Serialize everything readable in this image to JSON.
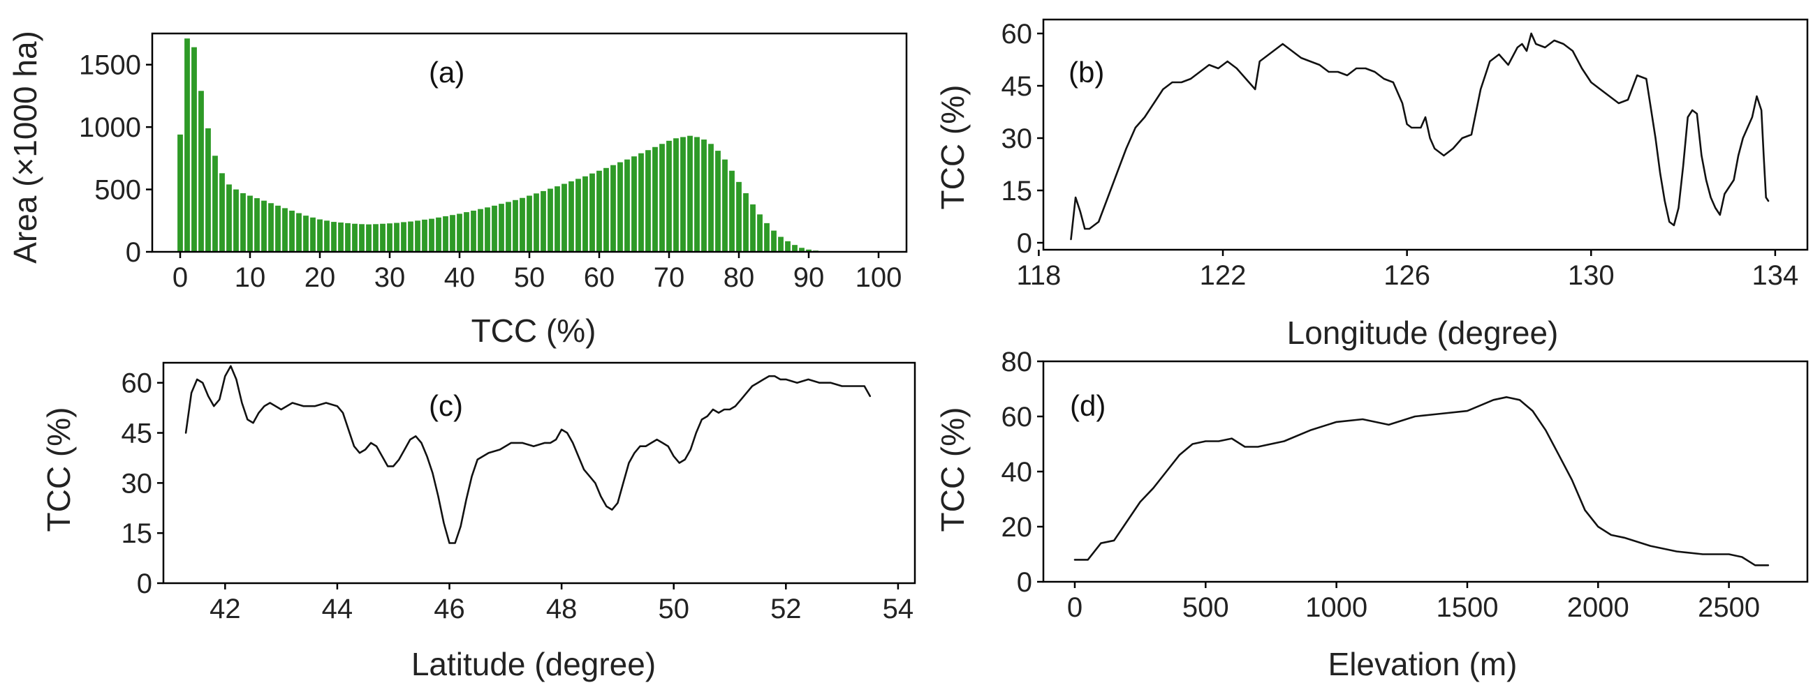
{
  "chart_data": [
    {
      "panel": "(a)",
      "type": "bar",
      "xlabel": "TCC (%)",
      "ylabel": "Area (×1000 ha)",
      "xlim": [
        -4,
        104
      ],
      "ylim": [
        0,
        1750
      ],
      "xticks": [
        0,
        10,
        20,
        30,
        40,
        50,
        60,
        70,
        80,
        90,
        100
      ],
      "yticks": [
        0,
        500,
        1000,
        1500
      ],
      "bar_color": "#2e9a27",
      "x": [
        0,
        1,
        2,
        3,
        4,
        5,
        6,
        7,
        8,
        9,
        10,
        11,
        12,
        13,
        14,
        15,
        16,
        17,
        18,
        19,
        20,
        21,
        22,
        23,
        24,
        25,
        26,
        27,
        28,
        29,
        30,
        31,
        32,
        33,
        34,
        35,
        36,
        37,
        38,
        39,
        40,
        41,
        42,
        43,
        44,
        45,
        46,
        47,
        48,
        49,
        50,
        51,
        52,
        53,
        54,
        55,
        56,
        57,
        58,
        59,
        60,
        61,
        62,
        63,
        64,
        65,
        66,
        67,
        68,
        69,
        70,
        71,
        72,
        73,
        74,
        75,
        76,
        77,
        78,
        79,
        80,
        81,
        82,
        83,
        84,
        85,
        86,
        87,
        88,
        89,
        90,
        91,
        92,
        93,
        94,
        95,
        96,
        97,
        98,
        99,
        100
      ],
      "values": [
        940,
        1710,
        1640,
        1290,
        990,
        770,
        630,
        540,
        500,
        470,
        450,
        430,
        410,
        390,
        370,
        350,
        330,
        310,
        290,
        275,
        260,
        250,
        240,
        235,
        230,
        225,
        222,
        220,
        222,
        225,
        228,
        232,
        238,
        243,
        250,
        258,
        265,
        275,
        285,
        295,
        305,
        318,
        330,
        343,
        356,
        370,
        385,
        400,
        415,
        432,
        450,
        468,
        487,
        506,
        525,
        545,
        565,
        585,
        605,
        628,
        650,
        672,
        695,
        718,
        740,
        765,
        790,
        815,
        840,
        865,
        890,
        910,
        920,
        930,
        920,
        900,
        865,
        810,
        740,
        650,
        560,
        470,
        380,
        300,
        230,
        170,
        120,
        85,
        55,
        32,
        18,
        10,
        5,
        3,
        2,
        1,
        1,
        0,
        0,
        0,
        0
      ]
    },
    {
      "panel": "(b)",
      "type": "line",
      "xlabel": "Longitude (degree)",
      "ylabel": "TCC (%)",
      "xlim": [
        118.1,
        134.7
      ],
      "ylim": [
        -2,
        64
      ],
      "xticks": [
        118,
        122,
        126,
        130,
        134
      ],
      "yticks": [
        0,
        15,
        30,
        45,
        60
      ],
      "x": [
        118.7,
        118.8,
        118.9,
        119.0,
        119.1,
        119.3,
        119.5,
        119.7,
        119.9,
        120.1,
        120.3,
        120.5,
        120.7,
        120.9,
        121.1,
        121.3,
        121.5,
        121.7,
        121.9,
        122.1,
        122.3,
        122.5,
        122.7,
        122.8,
        122.9,
        123.1,
        123.3,
        123.5,
        123.7,
        123.9,
        124.1,
        124.3,
        124.5,
        124.7,
        124.9,
        125.1,
        125.3,
        125.5,
        125.7,
        125.9,
        126.0,
        126.1,
        126.3,
        126.4,
        126.5,
        126.6,
        126.8,
        127.0,
        127.2,
        127.4,
        127.6,
        127.8,
        128.0,
        128.2,
        128.4,
        128.5,
        128.6,
        128.7,
        128.8,
        129.0,
        129.2,
        129.4,
        129.6,
        129.8,
        130.0,
        130.2,
        130.4,
        130.6,
        130.8,
        131.0,
        131.2,
        131.4,
        131.5,
        131.6,
        131.7,
        131.8,
        131.9,
        132.0,
        132.1,
        132.2,
        132.3,
        132.4,
        132.5,
        132.6,
        132.7,
        132.8,
        132.9,
        133.0,
        133.1,
        133.2,
        133.3,
        133.4,
        133.5,
        133.6,
        133.7,
        133.75,
        133.8,
        133.85
      ],
      "values": [
        1,
        13,
        9,
        4,
        4,
        6,
        13,
        20,
        27,
        33,
        36,
        40,
        44,
        46,
        46,
        47,
        49,
        51,
        50,
        52,
        50,
        47,
        44,
        52,
        53,
        55,
        57,
        55,
        53,
        52,
        51,
        49,
        49,
        48,
        50,
        50,
        49,
        47,
        46,
        40,
        34,
        33,
        33,
        36,
        30,
        27,
        25,
        27,
        30,
        31,
        44,
        52,
        54,
        51,
        56,
        57,
        55,
        60,
        57,
        56,
        58,
        57,
        55,
        50,
        46,
        44,
        42,
        40,
        41,
        48,
        47,
        30,
        20,
        12,
        6,
        5,
        10,
        22,
        36,
        38,
        37,
        25,
        18,
        13,
        10,
        8,
        14,
        16,
        18,
        25,
        30,
        33,
        36,
        42,
        38,
        25,
        13,
        12
      ]
    },
    {
      "panel": "(c)",
      "type": "line",
      "xlabel": "Latitude (degree)",
      "ylabel": "TCC (%)",
      "xlim": [
        40.9,
        54.3
      ],
      "ylim": [
        0,
        66
      ],
      "xticks": [
        42,
        44,
        46,
        48,
        50,
        52,
        54
      ],
      "yticks": [
        0,
        15,
        30,
        45,
        60
      ],
      "x": [
        41.3,
        41.4,
        41.5,
        41.6,
        41.7,
        41.8,
        41.9,
        42.0,
        42.1,
        42.2,
        42.3,
        42.4,
        42.5,
        42.6,
        42.7,
        42.8,
        42.9,
        43.0,
        43.2,
        43.4,
        43.6,
        43.8,
        44.0,
        44.1,
        44.2,
        44.3,
        44.4,
        44.5,
        44.6,
        44.7,
        44.8,
        44.9,
        45.0,
        45.1,
        45.2,
        45.3,
        45.4,
        45.5,
        45.6,
        45.7,
        45.8,
        45.9,
        46.0,
        46.1,
        46.2,
        46.3,
        46.4,
        46.5,
        46.7,
        46.9,
        47.1,
        47.3,
        47.5,
        47.7,
        47.8,
        47.9,
        48.0,
        48.1,
        48.2,
        48.3,
        48.4,
        48.5,
        48.6,
        48.7,
        48.8,
        48.9,
        49.0,
        49.1,
        49.2,
        49.3,
        49.4,
        49.5,
        49.6,
        49.7,
        49.8,
        49.9,
        50.0,
        50.1,
        50.2,
        50.3,
        50.4,
        50.5,
        50.6,
        50.7,
        50.8,
        50.9,
        51.0,
        51.1,
        51.2,
        51.3,
        51.4,
        51.5,
        51.6,
        51.7,
        51.8,
        51.9,
        52.0,
        52.2,
        52.4,
        52.6,
        52.8,
        53.0,
        53.2,
        53.4,
        53.5
      ],
      "values": [
        45,
        57,
        61,
        60,
        56,
        53,
        55,
        62,
        65,
        61,
        54,
        49,
        48,
        51,
        53,
        54,
        53,
        52,
        54,
        53,
        53,
        54,
        53,
        51,
        46,
        41,
        39,
        40,
        42,
        41,
        38,
        35,
        35,
        37,
        40,
        43,
        44,
        42,
        38,
        33,
        26,
        18,
        12,
        12,
        17,
        25,
        32,
        37,
        39,
        40,
        42,
        42,
        41,
        42,
        42,
        43,
        46,
        45,
        42,
        38,
        34,
        32,
        30,
        26,
        23,
        22,
        24,
        30,
        36,
        39,
        41,
        41,
        42,
        43,
        42,
        41,
        38,
        36,
        37,
        40,
        45,
        49,
        50,
        52,
        51,
        52,
        52,
        53,
        55,
        57,
        59,
        60,
        61,
        62,
        62,
        61,
        61,
        60,
        61,
        60,
        60,
        59,
        59,
        59,
        56
      ]
    },
    {
      "panel": "(d)",
      "type": "line",
      "xlabel": "Elevation (m)",
      "ylabel": "TCC (%)",
      "xlim": [
        -120,
        2800
      ],
      "ylim": [
        0,
        80
      ],
      "xticks": [
        0,
        500,
        1000,
        1500,
        2000,
        2500
      ],
      "yticks": [
        0,
        20,
        40,
        60,
        80
      ],
      "x": [
        0,
        50,
        100,
        150,
        200,
        250,
        300,
        350,
        400,
        450,
        500,
        550,
        600,
        650,
        700,
        800,
        900,
        1000,
        1100,
        1200,
        1300,
        1400,
        1500,
        1550,
        1600,
        1650,
        1700,
        1750,
        1800,
        1850,
        1900,
        1950,
        2000,
        2050,
        2100,
        2200,
        2300,
        2400,
        2500,
        2550,
        2600,
        2650
      ],
      "values": [
        8,
        8,
        14,
        15,
        22,
        29,
        34,
        40,
        46,
        50,
        51,
        51,
        52,
        49,
        49,
        51,
        55,
        58,
        59,
        57,
        60,
        61,
        62,
        64,
        66,
        67,
        66,
        62,
        55,
        46,
        37,
        26,
        20,
        17,
        16,
        13,
        11,
        10,
        10,
        9,
        6,
        6
      ]
    }
  ]
}
